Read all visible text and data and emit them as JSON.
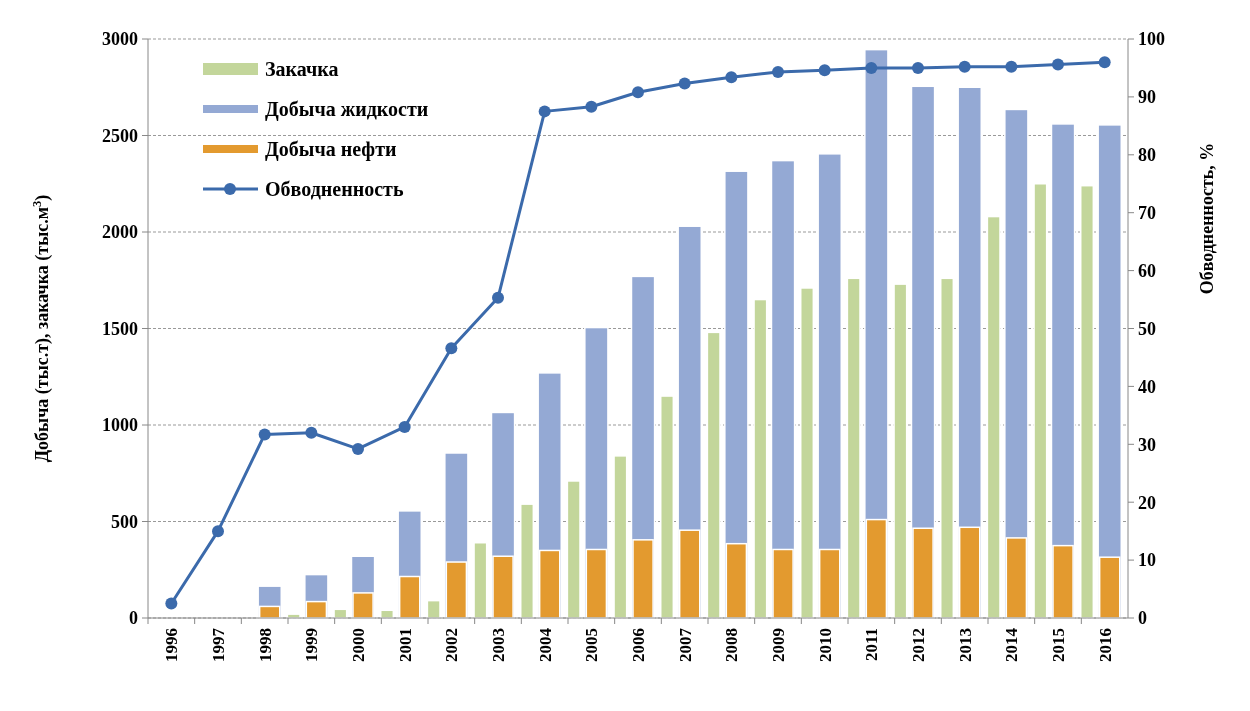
{
  "chart_data": {
    "type": "bar",
    "ylabel": "Добыча (тыс.т),  закачка (тыс.м$^{3}$)",
    "y2label": "Обводненность, %",
    "categories": [
      "1996",
      "1997",
      "1998",
      "1999",
      "2000",
      "2001",
      "2002",
      "2003",
      "2004",
      "2005",
      "2006",
      "2007",
      "2008",
      "2009",
      "2010",
      "2011",
      "2012",
      "2013",
      "2014",
      "2015",
      "2016"
    ],
    "series": [
      {
        "name": "Закачка",
        "color": "#c3d69b",
        "values": [
          null,
          null,
          null,
          20,
          45,
          40,
          90,
          390,
          590,
          710,
          840,
          1150,
          1480,
          1650,
          1710,
          1760,
          1730,
          1760,
          2080,
          2250,
          2240
        ]
      },
      {
        "name": "Добыча жидкости",
        "color": "#94a9d4",
        "values": [
          null,
          null,
          165,
          225,
          320,
          555,
          855,
          1065,
          1270,
          1505,
          1770,
          2030,
          2315,
          2370,
          2405,
          2945,
          2755,
          2750,
          2635,
          2560,
          2555
        ]
      },
      {
        "name": "Добыча нефти",
        "color": "#e39a2f",
        "values": [
          null,
          null,
          60,
          85,
          130,
          215,
          290,
          320,
          350,
          355,
          405,
          455,
          385,
          355,
          355,
          510,
          465,
          470,
          415,
          375,
          315
        ]
      },
      {
        "name": "Обводненность",
        "type": "line",
        "axis": "y2",
        "color": "#3b6aab",
        "marker": "circle",
        "values": [
          2.5,
          15,
          31.7,
          32,
          29.2,
          33,
          46.6,
          55.3,
          87.5,
          88.3,
          90.8,
          92.3,
          93.4,
          94.3,
          94.6,
          95,
          95,
          95.2,
          95.2,
          95.6,
          96
        ]
      }
    ],
    "ylim": [
      0,
      3000
    ],
    "yticks": [
      0,
      500,
      1000,
      1500,
      2000,
      2500,
      3000
    ],
    "y2lim": [
      0,
      100
    ],
    "y2ticks": [
      0,
      10,
      20,
      30,
      40,
      50,
      60,
      70,
      80,
      90,
      100
    ],
    "grid": "y",
    "legend": "top left"
  }
}
